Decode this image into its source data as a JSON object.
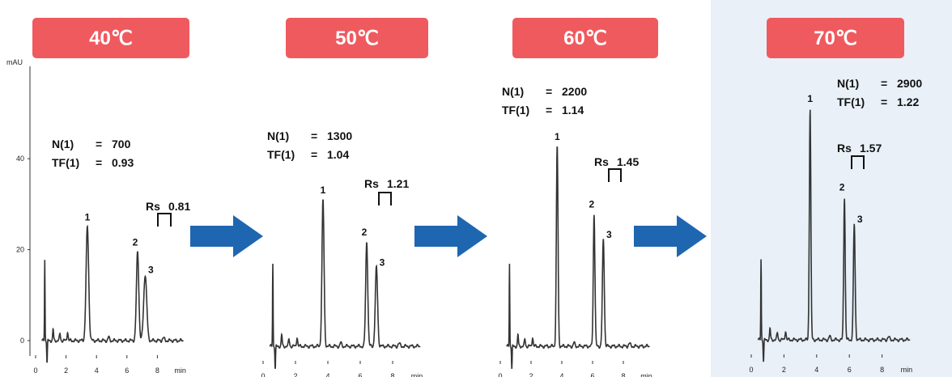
{
  "colors": {
    "badge": "#ef5a5f",
    "badge_text": "#ffffff",
    "arrow": "#1f66b1",
    "highlight_bg": "#e9f0f8",
    "trace": "#333333"
  },
  "chart_data": [
    {
      "type": "line",
      "title": "40℃",
      "ylabel": "mAU",
      "xlabel": "min",
      "xlim": [
        0,
        10
      ],
      "ylim": [
        -5,
        65
      ],
      "x_ticks": [
        0,
        2,
        4,
        6,
        8
      ],
      "y_ticks": [
        0,
        20,
        40
      ],
      "peaks": [
        {
          "label": "1",
          "x": 3.4,
          "height": 25,
          "width": 0.12
        },
        {
          "label": "2",
          "x": 6.7,
          "height": 19.5,
          "width": 0.11
        },
        {
          "label": "3",
          "x": 7.2,
          "height": 14.5,
          "width": 0.14
        }
      ],
      "annotations": {
        "n_label": "N(1)",
        "n_eq": "=",
        "n_value": "700",
        "tf_label": "TF(1)",
        "tf_eq": "=",
        "tf_value": "0.93",
        "rs_label": "Rs",
        "rs_value": "0.81"
      }
    },
    {
      "type": "line",
      "title": "50℃",
      "ylabel": "",
      "xlabel": "min",
      "xlim": [
        0,
        10
      ],
      "ylim": [
        -5,
        65
      ],
      "x_ticks": [
        0,
        2,
        4,
        6,
        8
      ],
      "y_ticks": [],
      "peaks": [
        {
          "label": "1",
          "x": 3.7,
          "height": 31.5,
          "width": 0.09
        },
        {
          "label": "2",
          "x": 6.4,
          "height": 22.5,
          "width": 0.09
        },
        {
          "label": "3",
          "x": 7.0,
          "height": 17,
          "width": 0.1
        }
      ],
      "annotations": {
        "n_label": "N(1)",
        "n_eq": "=",
        "n_value": "1300",
        "tf_label": "TF(1)",
        "tf_eq": "=",
        "tf_value": "1.04",
        "rs_label": "Rs",
        "rs_value": "1.21"
      }
    },
    {
      "type": "line",
      "title": "60℃",
      "ylabel": "",
      "xlabel": "min",
      "xlim": [
        0,
        10
      ],
      "ylim": [
        -5,
        65
      ],
      "x_ticks": [
        0,
        2,
        4,
        6,
        8
      ],
      "y_ticks": [],
      "peaks": [
        {
          "label": "1",
          "x": 3.7,
          "height": 43,
          "width": 0.075
        },
        {
          "label": "2",
          "x": 6.1,
          "height": 28.5,
          "width": 0.075
        },
        {
          "label": "3",
          "x": 6.7,
          "height": 23,
          "width": 0.085
        }
      ],
      "annotations": {
        "n_label": "N(1)",
        "n_eq": "=",
        "n_value": "2200",
        "tf_label": "TF(1)",
        "tf_eq": "=",
        "tf_value": "1.14",
        "rs_label": "Rs",
        "rs_value": "1.45"
      }
    },
    {
      "type": "line",
      "title": "70℃",
      "ylabel": "",
      "xlabel": "min",
      "xlim": [
        0,
        10
      ],
      "ylim": [
        -5,
        65
      ],
      "x_ticks": [
        0,
        2,
        4,
        6,
        8
      ],
      "y_ticks": [],
      "peaks": [
        {
          "label": "1",
          "x": 3.6,
          "height": 51,
          "width": 0.065
        },
        {
          "label": "2",
          "x": 5.7,
          "height": 31.5,
          "width": 0.065
        },
        {
          "label": "3",
          "x": 6.3,
          "height": 25.5,
          "width": 0.075
        }
      ],
      "annotations": {
        "n_label": "N(1)",
        "n_eq": "=",
        "n_value": "2900",
        "tf_label": "TF(1)",
        "tf_eq": "=",
        "tf_value": "1.22",
        "rs_label": "Rs",
        "rs_value": "1.57"
      }
    }
  ]
}
